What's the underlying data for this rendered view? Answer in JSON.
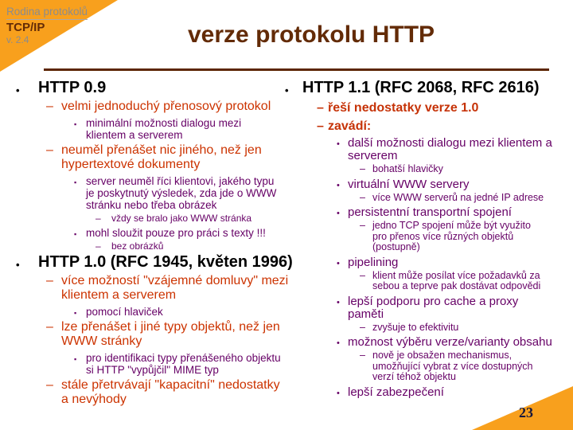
{
  "slide": {
    "brand": {
      "line1": "Rodina protokolů",
      "line2": "TCP/IP",
      "line3": "v. 2.4"
    },
    "title": "verze protokolu HTTP",
    "page_number": "23",
    "colors": {
      "accent_orange": "#F8A01D",
      "title_brown": "#632B07",
      "level2_red": "#CC3300",
      "level3_purple": "#660066",
      "heading_black": "#000000",
      "brand_gray": "#8C8C8C",
      "page_number_navy": "#18183C"
    },
    "bullets": {
      "l1": "•",
      "l2": "–",
      "l3_left": "▪",
      "l3_right": "•",
      "l4": "–"
    },
    "columns": {
      "left": [
        {
          "level": 1,
          "text": "HTTP 0.9"
        },
        {
          "level": 2,
          "text": "velmi jednoduchý přenosový protokol"
        },
        {
          "level": 3,
          "text": "minimální možnosti dialogu mezi\nklientem a serverem"
        },
        {
          "level": 2,
          "text": "neuměl přenášet nic jiného, než jen\nhypertextové dokumenty"
        },
        {
          "level": 3,
          "text": "server neuměl říci klientovi, jakého typu\nje poskytnutý výsledek, zda jde o WWW\nstránku nebo třeba obrázek"
        },
        {
          "level": 4,
          "text": "vždy se bralo jako WWW stránka"
        },
        {
          "level": 3,
          "text": "mohl sloužit pouze pro práci s texty !!!"
        },
        {
          "level": 4,
          "text": "bez obrázků"
        },
        {
          "level": 1,
          "text": "HTTP 1.0 (RFC 1945, květen 1996)"
        },
        {
          "level": 2,
          "text": "více možností \"vzájemné domluvy\" mezi\nklientem a serverem"
        },
        {
          "level": 3,
          "text": "pomocí hlaviček"
        },
        {
          "level": 2,
          "text": "lze přenášet i jiné typy objektů, než jen\nWWW stránky"
        },
        {
          "level": 3,
          "text": "pro identifikaci typy přenášeného objektu\nsi HTTP \"vypůjčil\" MIME typ"
        },
        {
          "level": 2,
          "text": "stále přetrvávají \"kapacitní\" nedostatky\na nevýhody"
        }
      ],
      "right": [
        {
          "level": 1,
          "text": "HTTP 1.1 (RFC 2068, RFC 2616)"
        },
        {
          "level": 2,
          "text": "řeší nedostatky verze 1.0"
        },
        {
          "level": 2,
          "text": "zavádí:"
        },
        {
          "level": 3,
          "text": "další možnosti dialogu mezi klientem a\nserverem"
        },
        {
          "level": 4,
          "text": "bohatší hlavičky"
        },
        {
          "level": 3,
          "text": "virtuální WWW servery"
        },
        {
          "level": 4,
          "text": "více WWW serverů na jedné IP adrese"
        },
        {
          "level": 3,
          "text": "persistentní transportní spojení"
        },
        {
          "level": 4,
          "text": "jedno TCP spojení může být využito\npro přenos více různých objektů\n(postupně)"
        },
        {
          "level": 3,
          "text": "pipelining"
        },
        {
          "level": 4,
          "text": "klient může posílat více požadavků za\nsebou a teprve pak dostávat odpovědi"
        },
        {
          "level": 3,
          "text": "lepší podporu pro cache a proxy\npaměti"
        },
        {
          "level": 4,
          "text": "zvyšuje to efektivitu"
        },
        {
          "level": 3,
          "text": "možnost výběru verze/varianty obsahu"
        },
        {
          "level": 4,
          "text": "nově je obsažen mechanismus,\numožňující vybrat z více dostupných\nverzí téhož objektu"
        },
        {
          "level": 3,
          "text": "lepší zabezpečení"
        }
      ]
    }
  }
}
